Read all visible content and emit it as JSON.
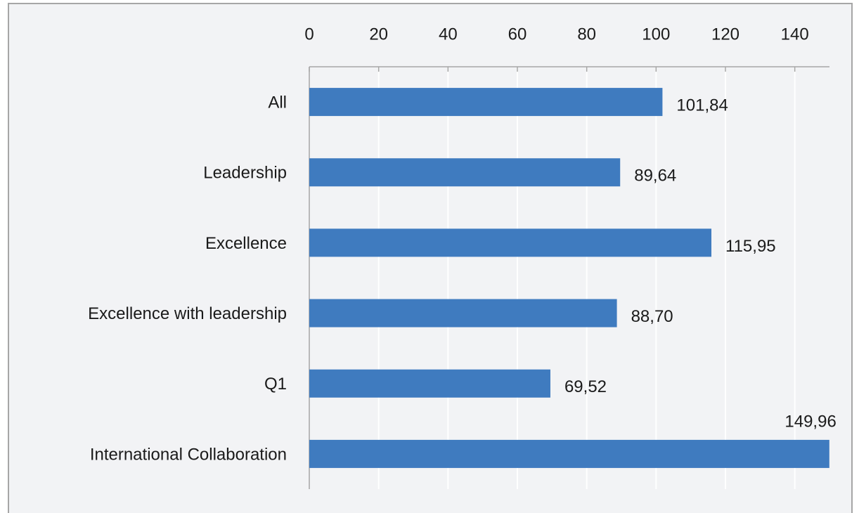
{
  "chart_data": {
    "type": "bar",
    "orientation": "horizontal",
    "categories": [
      "All",
      "Leadership",
      "Excellence",
      "Excellence with leadership",
      "Q1",
      "International Collaboration"
    ],
    "values": [
      101.84,
      89.64,
      115.95,
      88.7,
      69.52,
      149.96
    ],
    "value_labels": [
      "101,84",
      "89,64",
      "115,95",
      "88,70",
      "69,52",
      "149,96"
    ],
    "color": "#3f7bbf",
    "xlim": [
      0,
      150
    ],
    "xticks": [
      0,
      20,
      40,
      60,
      80,
      100,
      120,
      140
    ],
    "grid": true
  }
}
